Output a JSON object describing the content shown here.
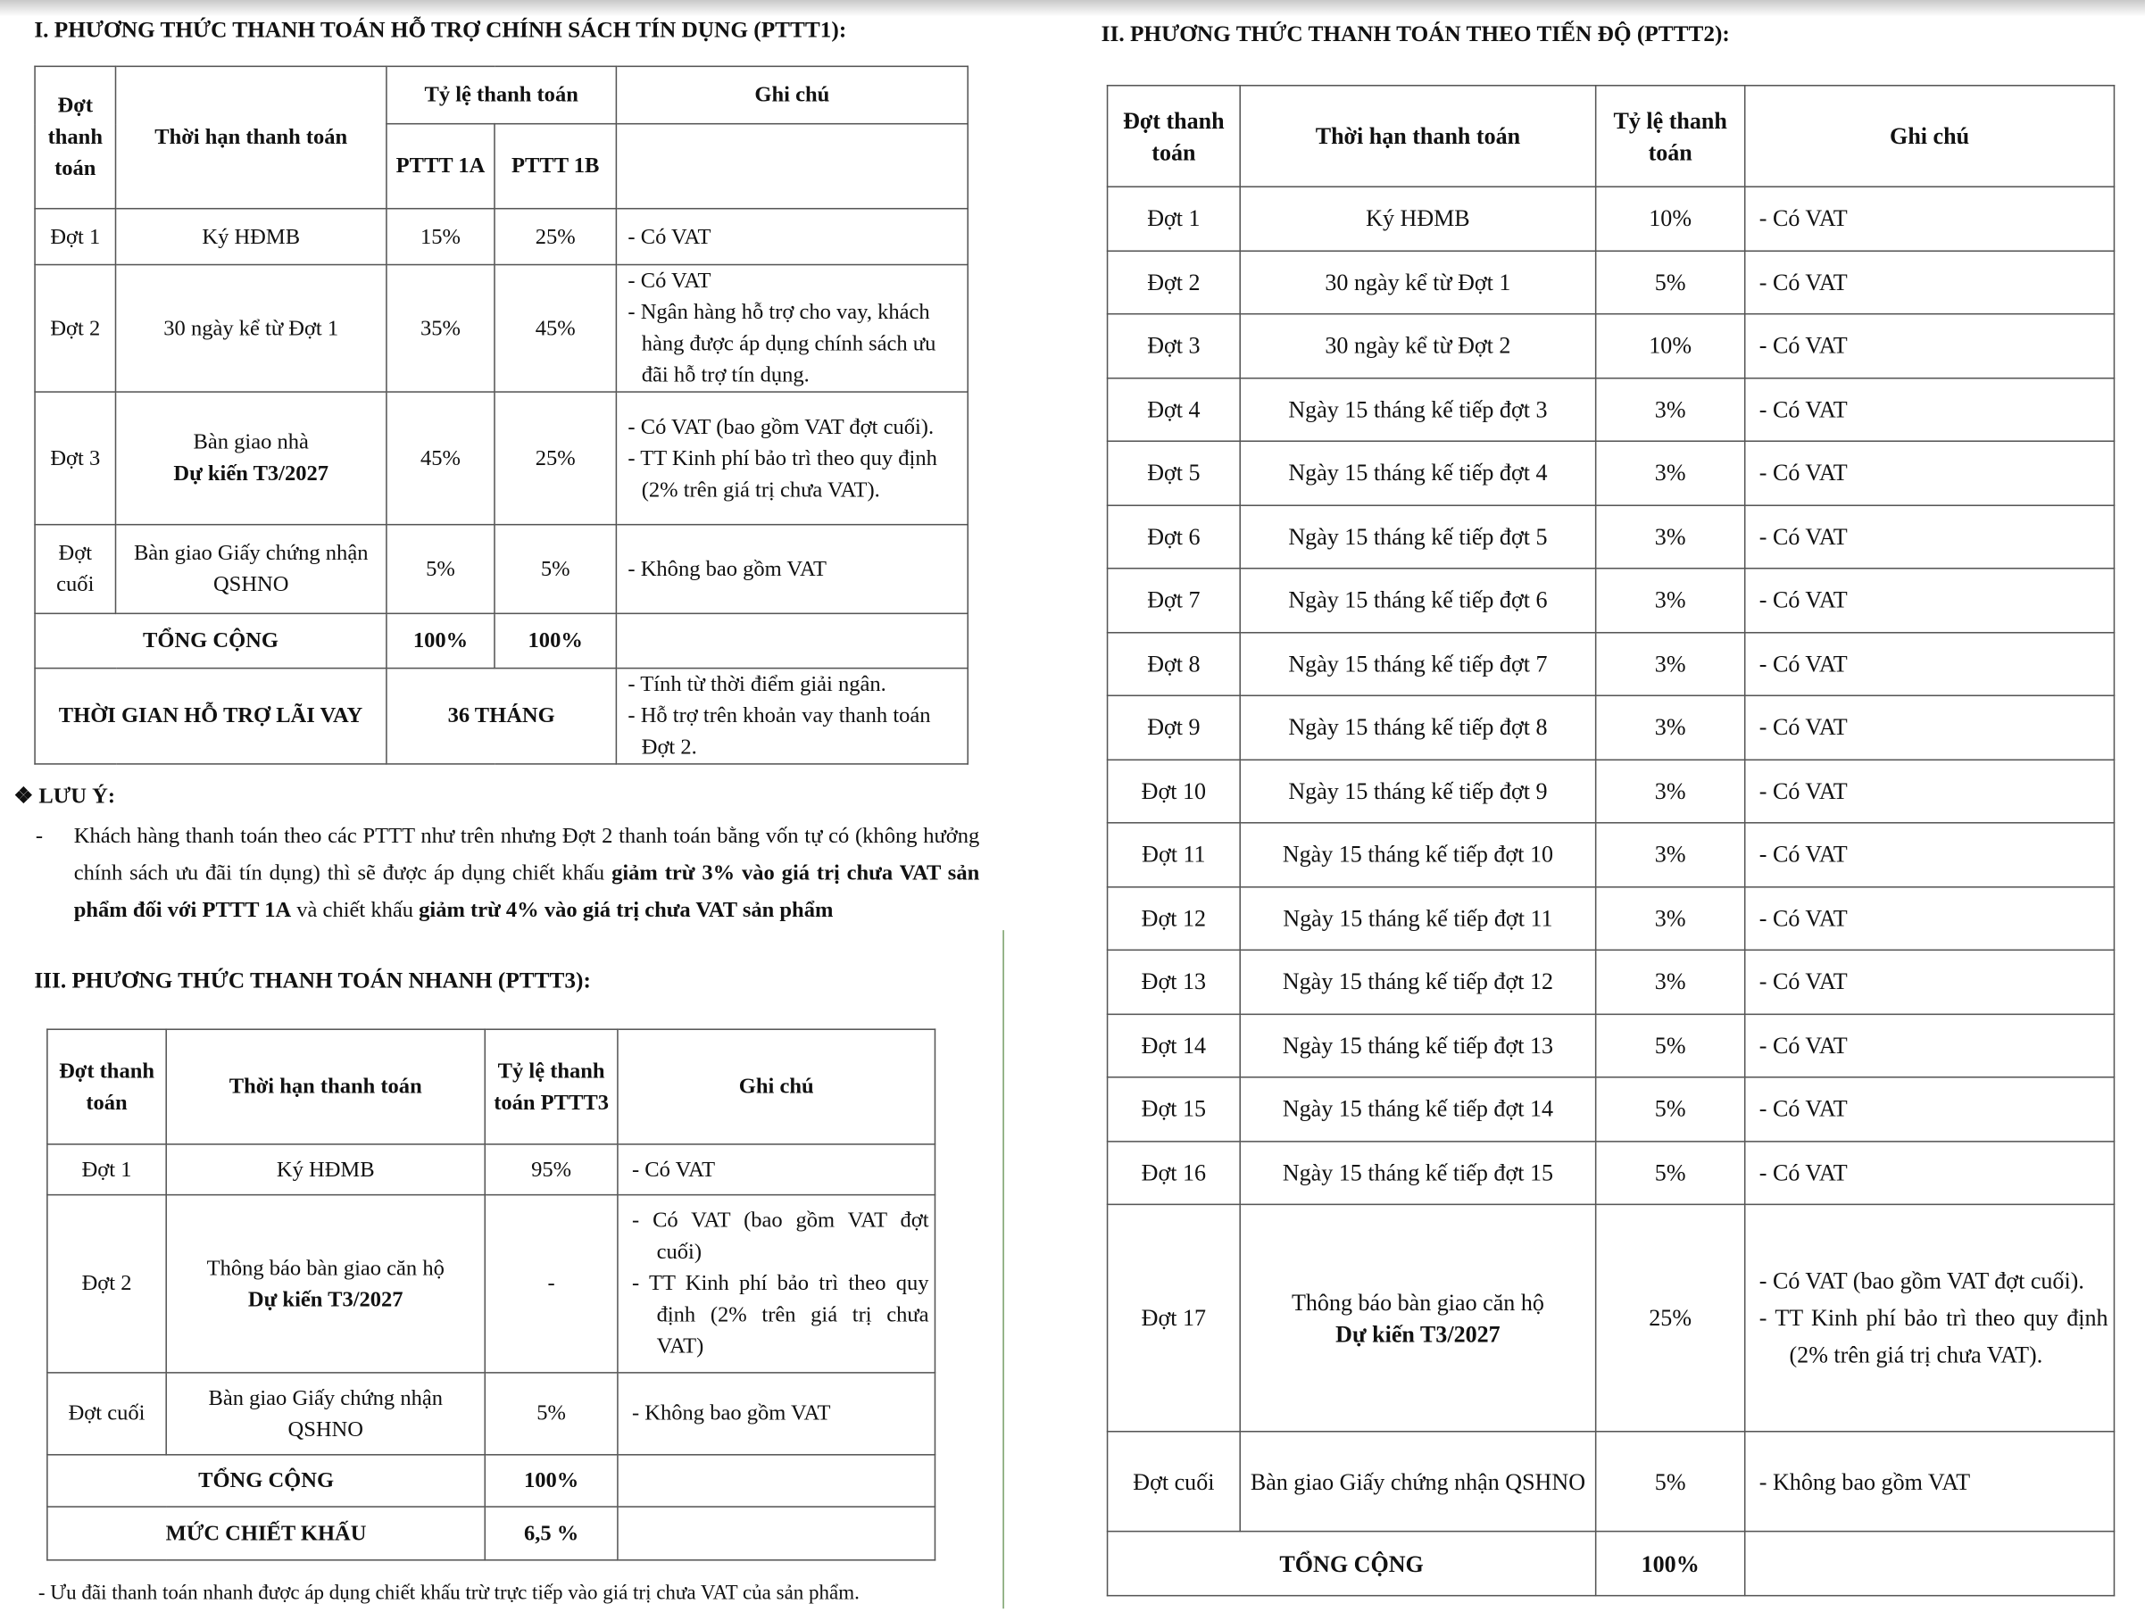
{
  "section1": {
    "title": "I.  PHƯƠNG THỨC THANH TOÁN HỖ TRỢ CHÍNH SÁCH TÍN DỤNG (PTTT1):",
    "headers": {
      "dot": "Đợt thanh toán",
      "thoi_han": "Thời hạn thanh toán",
      "ty_le": "Tỷ lệ thanh toán",
      "ghi_chu": "Ghi chú",
      "sub_1a": "PTTT 1A",
      "sub_1b": "PTTT 1B"
    },
    "rows": [
      {
        "dot": "Đợt 1",
        "thoi_han": [
          "Ký HĐMB"
        ],
        "a": "15%",
        "b": "25%",
        "notes": [
          "- Có VAT"
        ]
      },
      {
        "dot": "Đợt 2",
        "thoi_han": [
          "30 ngày kể từ Đợt 1"
        ],
        "a": "35%",
        "b": "45%",
        "notes": [
          "- Có VAT",
          "- Ngân hàng hỗ trợ cho vay, khách hàng được áp dụng chính sách ưu đãi hỗ trợ tín dụng."
        ]
      },
      {
        "dot": "Đợt 3",
        "thoi_han": [
          "Bàn giao nhà",
          "Dự kiến T3/2027"
        ],
        "a": "45%",
        "b": "25%",
        "notes": [
          "- Có VAT (bao gồm VAT đợt cuối).",
          "- TT Kinh phí bảo trì theo quy định (2% trên giá trị chưa VAT)."
        ]
      },
      {
        "dot": "Đợt cuối",
        "thoi_han": [
          "Bàn giao Giấy chứng nhận QSHNO"
        ],
        "a": "5%",
        "b": "5%",
        "notes": [
          "- Không bao gồm VAT"
        ]
      }
    ],
    "total": {
      "label": "TỔNG CỘNG",
      "a": "100%",
      "b": "100%"
    },
    "support": {
      "label": "THỜI GIAN HỖ TRỢ LÃI VAY",
      "value": "36 THÁNG",
      "notes": [
        "- Tính từ thời điểm giải ngân.",
        "- Hỗ trợ trên khoản vay thanh toán Đợt 2."
      ]
    }
  },
  "note": {
    "title": "❖ LƯU Ý:",
    "dash": "-",
    "segments": [
      {
        "text": "Khách hàng thanh toán theo các PTTT như trên nhưng Đợt 2 thanh toán bằng vốn tự có (không hưởng chính sách ưu đãi tín dụng) thì sẽ được áp dụng chiết khấu ",
        "bold": false
      },
      {
        "text": "giảm trừ 3% vào giá trị chưa VAT sản phẩm đối với PTTT 1A",
        "bold": true
      },
      {
        "text": " và chiết khấu ",
        "bold": false
      },
      {
        "text": "giảm trừ 4% vào giá trị chưa VAT sản phẩm",
        "bold": true
      }
    ]
  },
  "section2": {
    "title": "II. PHƯƠNG THỨC THANH TOÁN THEO TIẾN ĐỘ (PTTT2):",
    "headers": {
      "dot": "Đợt thanh toán",
      "thoi_han": "Thời hạn thanh toán",
      "ty_le": "Tỷ lệ thanh toán",
      "ghi_chu": "Ghi chú"
    },
    "rows": [
      {
        "dot": "Đợt 1",
        "thoi_han": [
          "Ký HĐMB"
        ],
        "rate": "10%",
        "notes": [
          "-   Có VAT"
        ]
      },
      {
        "dot": "Đợt 2",
        "thoi_han": [
          "30 ngày kể từ Đợt 1"
        ],
        "rate": "5%",
        "notes": [
          "-   Có VAT"
        ]
      },
      {
        "dot": "Đợt 3",
        "thoi_han": [
          "30 ngày kể từ Đợt 2"
        ],
        "rate": "10%",
        "notes": [
          "-   Có VAT"
        ]
      },
      {
        "dot": "Đợt 4",
        "thoi_han": [
          "Ngày 15 tháng kế tiếp đợt 3"
        ],
        "rate": "3%",
        "notes": [
          "-   Có VAT"
        ]
      },
      {
        "dot": "Đợt 5",
        "thoi_han": [
          "Ngày 15 tháng kế tiếp đợt 4"
        ],
        "rate": "3%",
        "notes": [
          "-   Có VAT"
        ]
      },
      {
        "dot": "Đợt 6",
        "thoi_han": [
          "Ngày 15 tháng kế tiếp đợt 5"
        ],
        "rate": "3%",
        "notes": [
          "-   Có VAT"
        ]
      },
      {
        "dot": "Đợt 7",
        "thoi_han": [
          "Ngày 15 tháng kế tiếp đợt 6"
        ],
        "rate": "3%",
        "notes": [
          "-   Có VAT"
        ]
      },
      {
        "dot": "Đợt 8",
        "thoi_han": [
          "Ngày 15 tháng kế tiếp đợt 7"
        ],
        "rate": "3%",
        "notes": [
          "-   Có VAT"
        ]
      },
      {
        "dot": "Đợt 9",
        "thoi_han": [
          "Ngày 15 tháng kế tiếp đợt 8"
        ],
        "rate": "3%",
        "notes": [
          "-   Có VAT"
        ]
      },
      {
        "dot": "Đợt 10",
        "thoi_han": [
          "Ngày 15 tháng kế tiếp đợt 9"
        ],
        "rate": "3%",
        "notes": [
          "-   Có VAT"
        ]
      },
      {
        "dot": "Đợt 11",
        "thoi_han": [
          "Ngày 15 tháng kế tiếp đợt 10"
        ],
        "rate": "3%",
        "notes": [
          "-   Có VAT"
        ]
      },
      {
        "dot": "Đợt 12",
        "thoi_han": [
          "Ngày 15 tháng kế tiếp đợt 11"
        ],
        "rate": "3%",
        "notes": [
          "-   Có VAT"
        ]
      },
      {
        "dot": "Đợt 13",
        "thoi_han": [
          "Ngày 15 tháng kế tiếp đợt 12"
        ],
        "rate": "3%",
        "notes": [
          "-   Có VAT"
        ]
      },
      {
        "dot": "Đợt 14",
        "thoi_han": [
          "Ngày 15 tháng kế tiếp đợt 13"
        ],
        "rate": "5%",
        "notes": [
          "-   Có VAT"
        ]
      },
      {
        "dot": "Đợt 15",
        "thoi_han": [
          "Ngày 15 tháng kế tiếp đợt 14"
        ],
        "rate": "5%",
        "notes": [
          "-   Có VAT"
        ]
      },
      {
        "dot": "Đợt 16",
        "thoi_han": [
          "Ngày 15 tháng kế tiếp đợt 15"
        ],
        "rate": "5%",
        "notes": [
          "-   Có VAT"
        ]
      },
      {
        "dot": "Đợt 17",
        "thoi_han": [
          "Thông báo bàn giao căn hộ",
          "Dự kiến T3/2027"
        ],
        "rate": "25%",
        "notes": [
          "-   Có VAT (bao gồm VAT đợt cuối).",
          "-   TT Kinh phí bảo trì theo quy định (2% trên giá trị chưa VAT)."
        ]
      },
      {
        "dot": "Đợt cuối",
        "thoi_han": [
          "Bàn giao Giấy chứng nhận QSHNO"
        ],
        "rate": "5%",
        "notes": [
          "-   Không bao gồm VAT"
        ]
      }
    ],
    "total": {
      "label": "TỔNG CỘNG",
      "rate": "100%"
    }
  },
  "section3": {
    "title": "III.  PHƯƠNG THỨC THANH TOÁN NHANH (PTTT3):",
    "headers": {
      "dot": "Đợt thanh toán",
      "thoi_han": "Thời hạn thanh toán",
      "ty_le": "Tỷ lệ thanh toán PTTT3",
      "ghi_chu": "Ghi chú"
    },
    "rows": [
      {
        "dot": "Đợt 1",
        "thoi_han": [
          "Ký HĐMB"
        ],
        "rate": "95%",
        "notes": [
          "-   Có VAT"
        ]
      },
      {
        "dot": "Đợt 2",
        "thoi_han": [
          "Thông báo bàn giao căn hộ",
          "Dự kiến T3/2027"
        ],
        "rate": "-",
        "notes": [
          "-   Có VAT (bao gồm VAT đợt cuối)",
          "-   TT Kinh phí bảo trì theo quy định (2% trên giá trị chưa VAT)"
        ]
      },
      {
        "dot": "Đợt cuối",
        "thoi_han": [
          "Bàn giao Giấy chứng nhận QSHNO"
        ],
        "rate": "5%",
        "notes": [
          "-   Không bao gồm VAT"
        ]
      }
    ],
    "total": {
      "label": "TỔNG CỘNG",
      "rate": "100%"
    },
    "discount": {
      "label": "MỨC CHIẾT KHẤU",
      "rate": "6,5 %"
    },
    "footnote": "-   Ưu đãi thanh toán nhanh được áp dụng chiết khấu trừ trực tiếp vào giá trị chưa VAT của sản phẩm."
  }
}
